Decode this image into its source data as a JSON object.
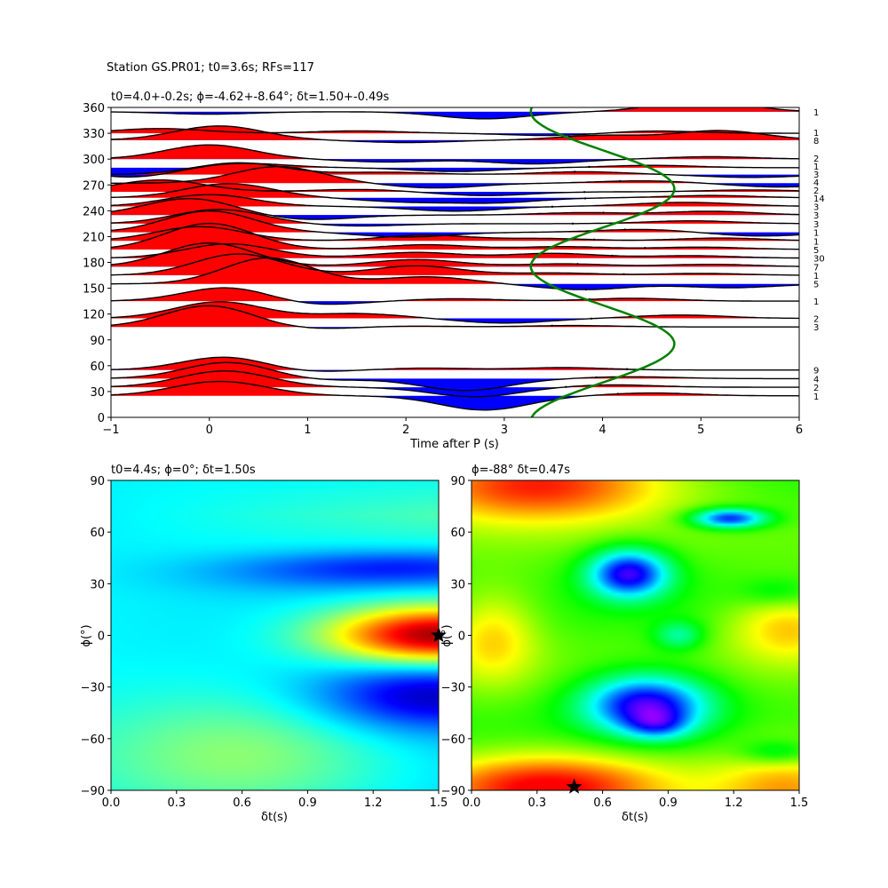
{
  "figure_title": "Station GS.PR01; t0=3.6s; RFs=117",
  "chart_data": [
    {
      "type": "area",
      "title": "t0=4.0+-0.2s; ϕ=-4.62+-8.64°; δt=1.50+-0.49s",
      "xlabel": "Time after P (s)",
      "ylabel": "",
      "xlim": [
        -1,
        6
      ],
      "ylim": [
        0,
        360
      ],
      "xticks": [
        "−1",
        "0",
        "1",
        "2",
        "3",
        "4",
        "5",
        "6"
      ],
      "yticks": [
        "0",
        "30",
        "60",
        "90",
        "120",
        "150",
        "180",
        "210",
        "240",
        "270",
        "300",
        "330",
        "360"
      ],
      "positive_color": "#ff0000",
      "negative_color": "#0000ff",
      "curve_color": "#008000",
      "grid": false,
      "traces": [
        {
          "baz": 25,
          "count": "1",
          "peaks": [
            [
              0.0,
              0.2
            ],
            [
              0.3,
              0.12
            ],
            [
              2.8,
              -0.3
            ],
            [
              4.5,
              0.06
            ]
          ]
        },
        {
          "baz": 35,
          "count": "2",
          "peaks": [
            [
              0.1,
              0.25
            ],
            [
              0.3,
              0.1
            ],
            [
              2.7,
              -0.2
            ],
            [
              4.1,
              0.05
            ]
          ]
        },
        {
          "baz": 45,
          "count": "4",
          "peaks": [
            [
              0.2,
              0.35
            ],
            [
              1.0,
              -0.05
            ],
            [
              2.6,
              -0.25
            ],
            [
              4.3,
              0.04
            ]
          ]
        },
        {
          "baz": 55,
          "count": "9",
          "peaks": [
            [
              0.2,
              0.3
            ],
            [
              0.8,
              -0.08
            ],
            [
              2.2,
              0.04
            ],
            [
              3.6,
              0.05
            ]
          ]
        },
        {
          "baz": 105,
          "count": "3",
          "peaks": [
            [
              0.0,
              0.45
            ],
            [
              1.0,
              -0.05
            ],
            [
              2.0,
              0.02
            ],
            [
              3.7,
              0.03
            ]
          ]
        },
        {
          "baz": 115,
          "count": "2",
          "peaks": [
            [
              0.1,
              0.35
            ],
            [
              1.5,
              0.1
            ],
            [
              3.0,
              -0.1
            ],
            [
              4.8,
              0.07
            ]
          ]
        },
        {
          "baz": 135,
          "count": "1",
          "peaks": [
            [
              0.2,
              0.3
            ],
            [
              1.0,
              -0.1
            ],
            [
              2.5,
              0.05
            ],
            [
              4.3,
              0.06
            ]
          ]
        },
        {
          "baz": 155,
          "count": "5",
          "peaks": [
            [
              0.6,
              0.55
            ],
            [
              2.2,
              0.15
            ],
            [
              3.8,
              -0.12
            ],
            [
              5.3,
              -0.08
            ]
          ]
        },
        {
          "baz": 165,
          "count": "1",
          "peaks": [
            [
              0.3,
              0.45
            ],
            [
              2.1,
              0.2
            ],
            [
              3.5,
              0.05
            ],
            [
              5.0,
              0.04
            ]
          ]
        },
        {
          "baz": 175,
          "count": "7",
          "peaks": [
            [
              0.0,
              0.5
            ],
            [
              2.1,
              0.15
            ],
            [
              3.6,
              0.06
            ],
            [
              5.1,
              0.05
            ]
          ]
        },
        {
          "baz": 185,
          "count": "30",
          "peaks": [
            [
              0.2,
              0.3
            ],
            [
              2.1,
              0.12
            ],
            [
              3.5,
              0.1
            ],
            [
              4.9,
              0.05
            ]
          ]
        },
        {
          "baz": 195,
          "count": "5",
          "peaks": [
            [
              0.0,
              0.55
            ],
            [
              2.2,
              0.1
            ],
            [
              3.6,
              0.06
            ],
            [
              5.0,
              0.05
            ]
          ]
        },
        {
          "baz": 205,
          "count": "1",
          "peaks": [
            [
              -0.1,
              0.3
            ],
            [
              2.2,
              0.12
            ],
            [
              3.4,
              0.05
            ],
            [
              5.2,
              0.06
            ]
          ]
        },
        {
          "baz": 215,
          "count": "1",
          "peaks": [
            [
              0.0,
              0.45
            ],
            [
              2.0,
              -0.1
            ],
            [
              4.4,
              0.06
            ],
            [
              5.6,
              -0.08
            ]
          ]
        },
        {
          "baz": 225,
          "count": "3",
          "peaks": [
            [
              0.1,
              0.3
            ],
            [
              1.5,
              -0.05
            ],
            [
              4.9,
              0.06
            ]
          ]
        },
        {
          "baz": 235,
          "count": "3",
          "peaks": [
            [
              -0.2,
              0.35
            ],
            [
              1.0,
              -0.1
            ],
            [
              3.8,
              0.05
            ],
            [
              5.1,
              0.08
            ]
          ]
        },
        {
          "baz": 245,
          "count": "3",
          "peaks": [
            [
              0.0,
              0.25
            ],
            [
              2.5,
              -0.1
            ],
            [
              4.6,
              0.05
            ],
            [
              5.1,
              0.05
            ]
          ]
        },
        {
          "baz": 255,
          "count": "14",
          "peaks": [
            [
              0.2,
              0.3
            ],
            [
              2.0,
              -0.08
            ],
            [
              2.9,
              -0.1
            ],
            [
              5.1,
              0.05
            ]
          ]
        },
        {
          "baz": 262,
          "count": "2",
          "peaks": [
            [
              -0.5,
              0.25
            ],
            [
              1.5,
              0.05
            ],
            [
              2.8,
              -0.08
            ],
            [
              5.5,
              0.04
            ]
          ]
        },
        {
          "baz": 272,
          "count": "4",
          "peaks": [
            [
              0.7,
              0.35
            ],
            [
              2.3,
              -0.1
            ],
            [
              4.4,
              0.05
            ],
            [
              5.8,
              -0.08
            ]
          ]
        },
        {
          "baz": 282,
          "count": "3",
          "peaks": [
            [
              0.3,
              0.25
            ],
            [
              1.8,
              0.05
            ],
            [
              3.8,
              0.06
            ],
            [
              5.5,
              -0.06
            ]
          ]
        },
        {
          "baz": 290,
          "count": "1",
          "peaks": [
            [
              -0.8,
              -0.2
            ],
            [
              0.3,
              0.1
            ],
            [
              2.5,
              -0.08
            ],
            [
              4.5,
              0.05
            ]
          ]
        },
        {
          "baz": 300,
          "count": "2",
          "peaks": [
            [
              0.0,
              0.3
            ],
            [
              1.8,
              -0.06
            ],
            [
              3.3,
              -0.1
            ],
            [
              5.1,
              0.05
            ]
          ]
        },
        {
          "baz": 322,
          "count": "8",
          "peaks": [
            [
              0.1,
              0.3
            ],
            [
              2.0,
              -0.05
            ],
            [
              4.0,
              0.1
            ],
            [
              5.2,
              0.2
            ]
          ]
        },
        {
          "baz": 330,
          "count": "1",
          "peaks": [
            [
              -0.5,
              0.1
            ],
            [
              1.5,
              0.05
            ],
            [
              3.5,
              -0.05
            ],
            [
              4.5,
              0.05
            ]
          ]
        },
        {
          "baz": 355,
          "count": "1",
          "peaks": [
            [
              0.0,
              -0.05
            ],
            [
              2.8,
              -0.15
            ],
            [
              5.0,
              0.25
            ]
          ]
        }
      ],
      "t0_curve": {
        "center": 4.0,
        "amplitude": 0.73,
        "period_deg": 180,
        "phase_deg": -4.62
      }
    },
    {
      "type": "heatmap",
      "title": "t0=4.4s; ϕ=0°; δt=1.50s",
      "xlabel": "δt(s)",
      "ylabel": "ϕ(°)",
      "xlim": [
        0,
        1.5
      ],
      "ylim": [
        -90,
        90
      ],
      "xticks": [
        "0.0",
        "0.3",
        "0.6",
        "0.9",
        "1.2",
        "1.5"
      ],
      "yticks": [
        "−90",
        "−60",
        "−30",
        "0",
        "30",
        "60",
        "90"
      ],
      "colormap": "jet",
      "best_point": [
        1.5,
        0
      ]
    },
    {
      "type": "heatmap",
      "title": "ϕ=-88° δt=0.47s",
      "xlabel": "δt(s)",
      "ylabel": "ϕ(°)",
      "xlim": [
        0,
        1.5
      ],
      "ylim": [
        -90,
        90
      ],
      "xticks": [
        "0.0",
        "0.3",
        "0.6",
        "0.9",
        "1.2",
        "1.5"
      ],
      "yticks": [
        "−90",
        "−60",
        "−30",
        "0",
        "30",
        "60",
        "90"
      ],
      "colormap": "hsv",
      "best_point": [
        0.47,
        -88
      ]
    }
  ]
}
